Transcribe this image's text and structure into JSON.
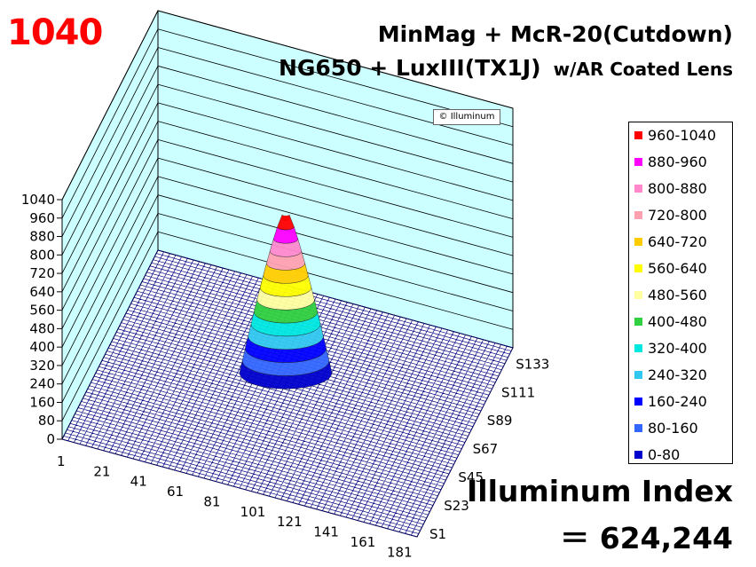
{
  "header": {
    "peak": "1040",
    "title_line1": "MinMag + McR-20(Cutdown)",
    "title_line2": "NG650 + LuxIII(TX1J)",
    "title_line2_note": "w/AR Coated Lens",
    "watermark": "© Illuminum"
  },
  "index": {
    "label": "Illuminum Index",
    "value": "＝ 624,244"
  },
  "colors": {
    "floor": "#000080",
    "wall": "#ccffff",
    "grid": "#000000"
  },
  "chart_data": {
    "type": "surface3d",
    "z_ticks": [
      "0",
      "80",
      "160",
      "240",
      "320",
      "400",
      "480",
      "560",
      "640",
      "720",
      "800",
      "880",
      "960",
      "1040"
    ],
    "x_ticks": [
      "1",
      "21",
      "41",
      "61",
      "81",
      "101",
      "121",
      "141",
      "161",
      "181"
    ],
    "y_ticks": [
      "S1",
      "S23",
      "S45",
      "S67",
      "S89",
      "S111",
      "S133"
    ],
    "zlim": [
      0,
      1040
    ],
    "peak_value": 1040,
    "legend": [
      {
        "label": "960-1040",
        "color": "#ff0000"
      },
      {
        "label": "880-960",
        "color": "#ff00ff"
      },
      {
        "label": "800-880",
        "color": "#ff88cc"
      },
      {
        "label": "720-800",
        "color": "#ffa0b0"
      },
      {
        "label": "640-720",
        "color": "#ffcc00"
      },
      {
        "label": "560-640",
        "color": "#ffff00"
      },
      {
        "label": "480-560",
        "color": "#ffffa0"
      },
      {
        "label": "400-480",
        "color": "#30d040"
      },
      {
        "label": "320-400",
        "color": "#00e8e0"
      },
      {
        "label": "240-320",
        "color": "#30c8f0"
      },
      {
        "label": "160-240",
        "color": "#0000ff"
      },
      {
        "label": "80-160",
        "color": "#3366ff"
      },
      {
        "label": "0-80",
        "color": "#0000cc"
      }
    ],
    "profile": {
      "bands": [
        {
          "from": 0,
          "to": 80
        },
        {
          "from": 80,
          "to": 160
        },
        {
          "from": 160,
          "to": 240
        },
        {
          "from": 240,
          "to": 320
        },
        {
          "from": 320,
          "to": 400
        },
        {
          "from": 400,
          "to": 480
        },
        {
          "from": 480,
          "to": 560
        },
        {
          "from": 560,
          "to": 640
        },
        {
          "from": 640,
          "to": 720
        },
        {
          "from": 720,
          "to": 800
        },
        {
          "from": 800,
          "to": 880
        },
        {
          "from": 880,
          "to": 960
        },
        {
          "from": 960,
          "to": 1040
        }
      ]
    }
  }
}
